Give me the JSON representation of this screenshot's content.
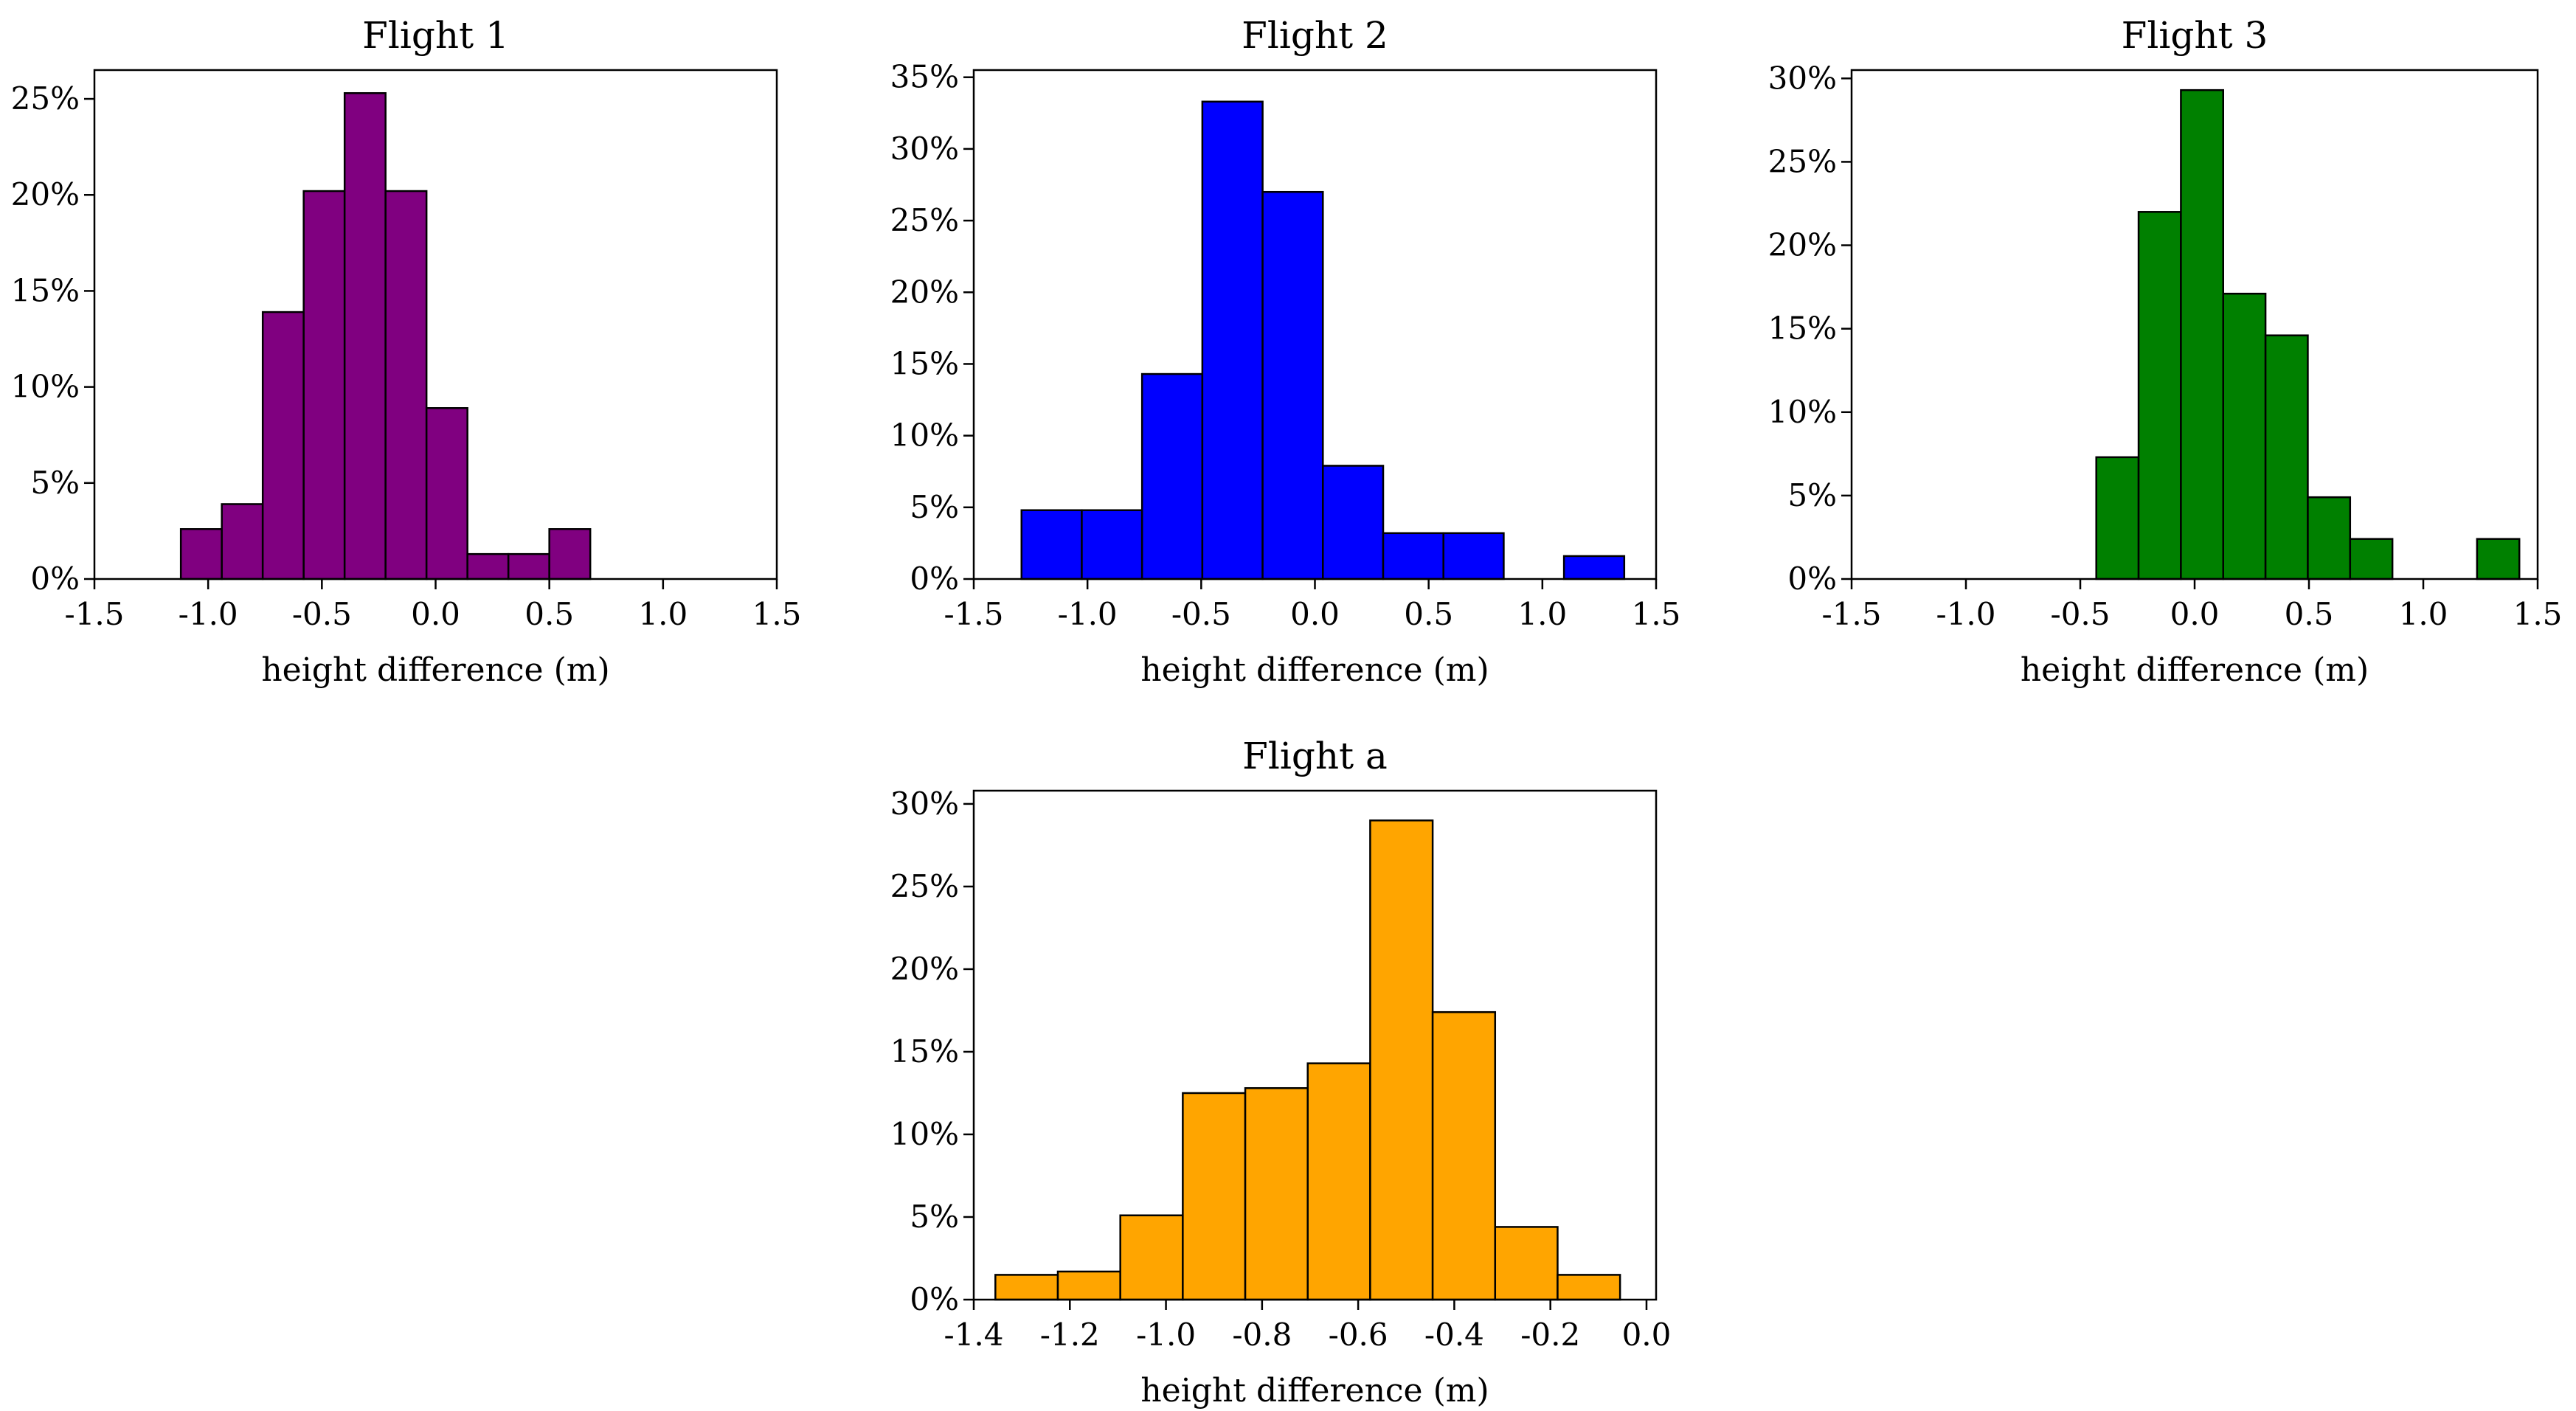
{
  "chart_data": [
    {
      "type": "bar",
      "title": "Flight 1",
      "xlabel": "height difference (m)",
      "ylabel": "",
      "color": "#800080",
      "xlim": [
        -1.5,
        1.5
      ],
      "ylim": [
        0,
        26.5
      ],
      "xticks": [
        -1.5,
        -1.0,
        -0.5,
        0.0,
        0.5,
        1.0,
        1.5
      ],
      "xtick_labels": [
        "-1.5",
        "-1.0",
        "-0.5",
        "0.0",
        "0.5",
        "1.0",
        "1.5"
      ],
      "yticks": [
        0,
        5,
        10,
        15,
        20,
        25
      ],
      "ytick_labels": [
        "0%",
        "5%",
        "10%",
        "15%",
        "20%",
        "25%"
      ],
      "bin_edges": [
        -1.12,
        -0.94,
        -0.76,
        -0.58,
        -0.4,
        -0.22,
        -0.04,
        0.14,
        0.32,
        0.5,
        0.68
      ],
      "values": [
        2.6,
        3.9,
        13.9,
        20.2,
        25.3,
        20.2,
        8.9,
        1.3,
        1.3,
        2.6
      ],
      "grid": false,
      "legend": "none"
    },
    {
      "type": "bar",
      "title": "Flight 2",
      "xlabel": "height difference (m)",
      "ylabel": "",
      "color": "#0000ff",
      "xlim": [
        -1.5,
        1.5
      ],
      "ylim": [
        0,
        35.5
      ],
      "xticks": [
        -1.5,
        -1.0,
        -0.5,
        0.0,
        0.5,
        1.0,
        1.5
      ],
      "xtick_labels": [
        "-1.5",
        "-1.0",
        "-0.5",
        "0.0",
        "0.5",
        "1.0",
        "1.5"
      ],
      "yticks": [
        0,
        5,
        10,
        15,
        20,
        25,
        30,
        35
      ],
      "ytick_labels": [
        "0%",
        "5%",
        "10%",
        "15%",
        "20%",
        "25%",
        "30%",
        "35%"
      ],
      "bin_edges": [
        -1.29,
        -1.025,
        -0.76,
        -0.495,
        -0.23,
        0.035,
        0.3,
        0.565,
        0.83,
        1.095,
        1.36
      ],
      "values": [
        4.8,
        4.8,
        14.3,
        33.3,
        27.0,
        7.9,
        3.2,
        3.2,
        0.0,
        1.6
      ],
      "grid": false,
      "legend": "none"
    },
    {
      "type": "bar",
      "title": "Flight 3",
      "xlabel": "height difference (m)",
      "ylabel": "",
      "color": "#008000",
      "xlim": [
        -1.5,
        1.5
      ],
      "ylim": [
        0,
        30.5
      ],
      "xticks": [
        -1.5,
        -1.0,
        -0.5,
        0.0,
        0.5,
        1.0,
        1.5
      ],
      "xtick_labels": [
        "-1.5",
        "-1.0",
        "-0.5",
        "0.0",
        "0.5",
        "1.0",
        "1.5"
      ],
      "yticks": [
        0,
        5,
        10,
        15,
        20,
        25,
        30
      ],
      "ytick_labels": [
        "0%",
        "5%",
        "10%",
        "15%",
        "20%",
        "25%",
        "30%"
      ],
      "bin_edges": [
        -0.43,
        -0.245,
        -0.06,
        0.125,
        0.31,
        0.495,
        0.68,
        0.865,
        1.05,
        1.235,
        1.42
      ],
      "values": [
        7.3,
        22.0,
        29.3,
        17.1,
        14.6,
        4.9,
        2.4,
        0.0,
        0.0,
        2.4
      ],
      "grid": false,
      "legend": "none"
    },
    {
      "type": "bar",
      "title": "Flight a",
      "xlabel": "height difference (m)",
      "ylabel": "",
      "color": "#ffa500",
      "xlim": [
        -1.4,
        0.02
      ],
      "ylim": [
        0,
        30.8
      ],
      "xticks": [
        -1.4,
        -1.2,
        -1.0,
        -0.8,
        -0.6,
        -0.4,
        -0.2,
        0.0
      ],
      "xtick_labels": [
        "-1.4",
        "-1.2",
        "-1.0",
        "-0.8",
        "-0.6",
        "-0.4",
        "-0.2",
        "0.0"
      ],
      "yticks": [
        0,
        5,
        10,
        15,
        20,
        25,
        30
      ],
      "ytick_labels": [
        "0%",
        "5%",
        "10%",
        "15%",
        "20%",
        "25%",
        "30%"
      ],
      "bin_edges": [
        -1.355,
        -1.225,
        -1.095,
        -0.965,
        -0.835,
        -0.705,
        -0.575,
        -0.445,
        -0.315,
        -0.185,
        -0.055
      ],
      "values": [
        1.5,
        1.7,
        5.1,
        12.5,
        12.8,
        14.3,
        29.0,
        17.4,
        4.4,
        1.5
      ],
      "grid": false,
      "legend": "none"
    }
  ]
}
